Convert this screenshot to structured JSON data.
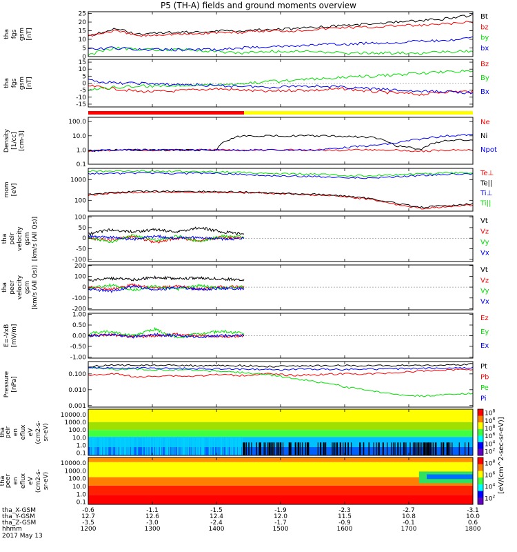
{
  "title": "P5 (TH-A) fields and ground moments overview",
  "date_label": "2017 May 13",
  "orbit": {
    "row_labels": [
      "tha_X-GSM",
      "tha_Y-GSM",
      "tha_Z-GSM",
      "hhmm"
    ],
    "rows": [
      [
        "-0.6",
        "-1.1",
        "-1.5",
        "-1.9",
        "-2.3",
        "-2.7",
        "-3.1"
      ],
      [
        "12.7",
        "12.6",
        "12.4",
        "12.0",
        "11.5",
        "10.8",
        "10.0"
      ],
      [
        "-3.5",
        "-3.0",
        "-2.4",
        "-1.7",
        "-0.9",
        "-0.1",
        "0.6"
      ],
      [
        "1200",
        "1300",
        "1400",
        "1500",
        "1600",
        "1700",
        "1800"
      ]
    ]
  },
  "colors": {
    "black": "#000000",
    "red": "#ff0000",
    "green": "#00e000",
    "blue": "#0000ff"
  },
  "mode_bar": {
    "red_fraction": 0.405,
    "colors": [
      "#ff0000",
      "#ffff00"
    ]
  },
  "colorbar": {
    "label": "[eV/(cm^2-sec-sr-eV)]",
    "ticks": [
      "10^2",
      "10^4",
      "10^6",
      "10^8"
    ],
    "ticks_panel1": [
      "10^2",
      "10^4",
      "10^6",
      "10^8",
      "10^8",
      "10^8"
    ]
  },
  "chart_data": [
    {
      "type": "line",
      "ylabel": "tha fgs gsm [nT]",
      "yticks": [
        "0",
        "5",
        "10",
        "15",
        "20",
        "25"
      ],
      "ylim": [
        0,
        26
      ],
      "series": [
        {
          "name": "Bt",
          "color": "#000000",
          "values": [
            12,
            16,
            13,
            14,
            14,
            15,
            15,
            16,
            16,
            17,
            18,
            19,
            20,
            21,
            22,
            24
          ]
        },
        {
          "name": "bz",
          "color": "#ff0000",
          "values": [
            12,
            15,
            12,
            13,
            13,
            14,
            14,
            15,
            15,
            16,
            17,
            17,
            18,
            18,
            19,
            20
          ]
        },
        {
          "name": "by",
          "color": "#00e000",
          "values": [
            1,
            5,
            4,
            4,
            4,
            3,
            2,
            3,
            3,
            3,
            2,
            2,
            2,
            2,
            3,
            3
          ]
        },
        {
          "name": "bx",
          "color": "#0000ff",
          "values": [
            4,
            5,
            4,
            4,
            4,
            4,
            5,
            6,
            6,
            7,
            7,
            8,
            8,
            9,
            9,
            11
          ]
        }
      ]
    },
    {
      "type": "line",
      "ylabel": "tha fgs gsm [nT]",
      "yticks": [
        "-15",
        "-10",
        "-5",
        "0",
        "5",
        "10",
        "15"
      ],
      "ylim": [
        -17,
        17
      ],
      "series": [
        {
          "name": "Bz",
          "color": "#ff0000",
          "values": [
            -2,
            -4,
            -6,
            -6,
            -5,
            -4,
            -5,
            -6,
            -5,
            -5,
            -4,
            -6,
            -7,
            -8,
            -6,
            -6
          ]
        },
        {
          "name": "By",
          "color": "#00e000",
          "values": [
            -5,
            -3,
            -2,
            -2,
            -1,
            -1,
            0,
            1,
            2,
            3,
            4,
            5,
            6,
            7,
            8,
            9
          ]
        },
        {
          "name": "Bx",
          "color": "#0000ff",
          "values": [
            2,
            0,
            0,
            -1,
            -1,
            -2,
            -2,
            -3,
            -2,
            -2,
            -3,
            -4,
            -5,
            -6,
            -6,
            -7
          ]
        }
      ]
    },
    {
      "type": "line",
      "ylabel": "Density [1/cc]",
      "yticks": [
        "0.1",
        "1.0",
        "10.0",
        "100.0"
      ],
      "ylim": [
        0.1,
        200
      ],
      "log": true,
      "series": [
        {
          "name": "Ne",
          "color": "#ff0000",
          "values": [
            0.8,
            1,
            1,
            1,
            1,
            1,
            1,
            1,
            1,
            1,
            1,
            1,
            1,
            0.8,
            1,
            1
          ]
        },
        {
          "name": "Ni",
          "color": "#000000",
          "values": [
            0.8,
            1,
            1,
            1,
            1,
            1,
            10,
            10,
            10,
            10,
            9,
            8,
            2,
            1,
            5,
            5
          ]
        },
        {
          "name": "Npot",
          "color": "#0000ff",
          "values": [
            0.9,
            1,
            1,
            1,
            1,
            1,
            1,
            1,
            1,
            1,
            1.5,
            2,
            3,
            6,
            10,
            12
          ]
        }
      ]
    },
    {
      "type": "line",
      "ylabel": "mom [eV]",
      "yticks": [
        "100",
        "1000"
      ],
      "ylim": [
        30,
        3500
      ],
      "log": true,
      "series": [
        {
          "name": "Te⊥",
          "color": "#ff0000",
          "values": [
            180,
            220,
            250,
            250,
            250,
            240,
            230,
            220,
            200,
            180,
            150,
            110,
            60,
            40,
            50,
            60
          ]
        },
        {
          "name": "Te||",
          "color": "#000000",
          "values": [
            190,
            240,
            270,
            270,
            270,
            260,
            250,
            230,
            210,
            190,
            160,
            120,
            70,
            45,
            55,
            70
          ]
        },
        {
          "name": "Ti⊥",
          "color": "#0000ff",
          "values": [
            2000,
            2000,
            2100,
            2000,
            2000,
            2000,
            1800,
            1500,
            1500,
            1400,
            1300,
            1200,
            1400,
            1600,
            1800,
            1900
          ]
        },
        {
          "name": "Ti||",
          "color": "#00e000",
          "values": [
            2600,
            2500,
            2600,
            2500,
            2500,
            2400,
            2200,
            1900,
            1900,
            1800,
            1600,
            1500,
            1700,
            1900,
            2100,
            2200
          ]
        }
      ]
    },
    {
      "type": "line",
      "ylabel": "tha peir velocity gsm [km/s (All Qs)]",
      "yticks": [
        "-100",
        "-50",
        "0",
        "50",
        "100"
      ],
      "ylim": [
        -110,
        105
      ],
      "x_end_fraction": 0.405,
      "series": [
        {
          "name": "Vt",
          "color": "#000000",
          "values": [
            20,
            40,
            30,
            40,
            30,
            50,
            30,
            20
          ]
        },
        {
          "name": "Vz",
          "color": "#ff0000",
          "values": [
            0,
            -10,
            10,
            -20,
            0,
            -10,
            5,
            0
          ]
        },
        {
          "name": "Vy",
          "color": "#00e000",
          "values": [
            5,
            -20,
            15,
            -10,
            10,
            -15,
            10,
            5
          ]
        },
        {
          "name": "Vx",
          "color": "#0000ff",
          "values": [
            10,
            5,
            -5,
            10,
            0,
            5,
            -5,
            0
          ]
        }
      ]
    },
    {
      "type": "line",
      "ylabel": "tha peer velocity gsm [km/s (All Qs)]",
      "yticks": [
        "-200",
        "-100",
        "0",
        "100",
        "200"
      ],
      "ylim": [
        -210,
        205
      ],
      "x_end_fraction": 0.405,
      "series": [
        {
          "name": "Vt",
          "color": "#000000",
          "values": [
            60,
            80,
            70,
            90,
            80,
            85,
            75,
            70
          ]
        },
        {
          "name": "Vz",
          "color": "#ff0000",
          "values": [
            0,
            -20,
            20,
            -10,
            10,
            -20,
            5,
            0
          ]
        },
        {
          "name": "Vy",
          "color": "#00e000",
          "values": [
            -10,
            20,
            -30,
            10,
            -20,
            15,
            -10,
            5
          ]
        },
        {
          "name": "Vx",
          "color": "#0000ff",
          "values": [
            -20,
            -40,
            10,
            -30,
            0,
            -20,
            -10,
            -15
          ]
        }
      ]
    },
    {
      "type": "line",
      "ylabel": "E=-VxB [mV/m]",
      "yticks": [
        "-1.00",
        "-0.50",
        "0.00",
        "0.50",
        "1.00"
      ],
      "ylim": [
        -1.05,
        1.05
      ],
      "x_end_fraction": 0.405,
      "series": [
        {
          "name": "Ez",
          "color": "#ff0000",
          "values": [
            0,
            0.05,
            -0.05,
            0,
            0.05,
            0,
            -0.05,
            0
          ]
        },
        {
          "name": "Ey",
          "color": "#00e000",
          "values": [
            0.1,
            0.2,
            0,
            0.3,
            -0.1,
            0.1,
            0.2,
            0.1
          ]
        },
        {
          "name": "Ex",
          "color": "#0000ff",
          "values": [
            0,
            0.05,
            -0.05,
            0.05,
            0,
            -0.05,
            0,
            0
          ]
        }
      ]
    },
    {
      "type": "line",
      "ylabel": "Pressure [nPa]",
      "yticks": [
        "0.001",
        "0.010",
        "0.100"
      ],
      "ylim": [
        0.0008,
        0.6
      ],
      "log": true,
      "series": [
        {
          "name": "Pt",
          "color": "#000000",
          "values": [
            0.3,
            0.35,
            0.35,
            0.35,
            0.33,
            0.33,
            0.33,
            0.3,
            0.3,
            0.32,
            0.33,
            0.32,
            0.33,
            0.34,
            0.35,
            0.4
          ]
        },
        {
          "name": "Pb",
          "color": "#ff0000",
          "values": [
            0.08,
            0.1,
            0.06,
            0.08,
            0.07,
            0.09,
            0.08,
            0.1,
            0.08,
            0.09,
            0.1,
            0.1,
            0.12,
            0.15,
            0.18,
            0.2
          ]
        },
        {
          "name": "Pe",
          "color": "#00e000",
          "values": [
            0.25,
            0.2,
            0.2,
            0.18,
            0.17,
            0.15,
            0.12,
            0.09,
            0.05,
            0.03,
            0.015,
            0.008,
            0.005,
            0.004,
            0.005,
            0.006
          ]
        },
        {
          "name": "Pi",
          "color": "#0000ff",
          "values": [
            0.25,
            0.24,
            0.23,
            0.22,
            0.22,
            0.21,
            0.2,
            0.18,
            0.2,
            0.2,
            0.19,
            0.2,
            0.21,
            0.22,
            0.23,
            0.25
          ]
        }
      ]
    },
    {
      "type": "heatmap",
      "ylabel": "tha peir en eflux eV [eV/(cm^2-sec-sr-eV)]",
      "yticks": [
        "0.1",
        "1.0",
        "10.0",
        "100.0",
        "1000.0",
        "10000.0"
      ]
    },
    {
      "type": "heatmap",
      "ylabel": "tha peer en eflux eV [eV/(cm^2-sec-sr-eV)]",
      "yticks": [
        "0.1",
        "1.0",
        "10.0",
        "100.0",
        "1000.0",
        "10000.0"
      ]
    }
  ],
  "panels": [
    {
      "lab": [
        "tha",
        "fgs",
        "gsm",
        "[nT]"
      ],
      "legend": [
        "Bt",
        "bz",
        "by",
        "bx"
      ]
    },
    {
      "lab": [
        "tha",
        "fgs",
        "gsm",
        "[nT]"
      ],
      "legend": [
        "Bz",
        "By",
        "Bx"
      ]
    },
    {
      "lab": [
        "Density",
        "[1/cc]",
        "[cm-3]"
      ],
      "legend": [
        "Ne",
        "Ni",
        "Npot"
      ]
    },
    {
      "lab": [
        "mom",
        "[eV]"
      ],
      "legend": [
        "Te⊥",
        "Te||",
        "Ti⊥",
        "Ti||"
      ]
    },
    {
      "lab": [
        "tha",
        "peir",
        "velocity",
        "gsm",
        "[km/s (All Qs)]"
      ],
      "legend": [
        "Vt",
        "Vz",
        "Vy",
        "Vx"
      ]
    },
    {
      "lab": [
        "tha",
        "peer",
        "velocity",
        "gsm",
        "[km/s (All Qs)]"
      ],
      "legend": [
        "Vt",
        "Vz",
        "Vy",
        "Vx"
      ]
    },
    {
      "lab": [
        "E=-VxB",
        "[mV/m]"
      ],
      "legend": [
        "Ez",
        "Ey",
        "Ex"
      ]
    },
    {
      "lab": [
        "Pressure",
        "[nPa]"
      ],
      "legend": [
        "Pt",
        "Pb",
        "Pe",
        "Pi"
      ]
    },
    {
      "lab": [
        "tha",
        "peir",
        "en",
        "eflux",
        "eV",
        "(cm2-s-",
        "sr-eV)"
      ],
      "legend": []
    },
    {
      "lab": [
        "tha",
        "peer",
        "en",
        "eflux",
        "eV",
        "(cm2-s-",
        "sr-eV)"
      ],
      "legend": []
    }
  ]
}
